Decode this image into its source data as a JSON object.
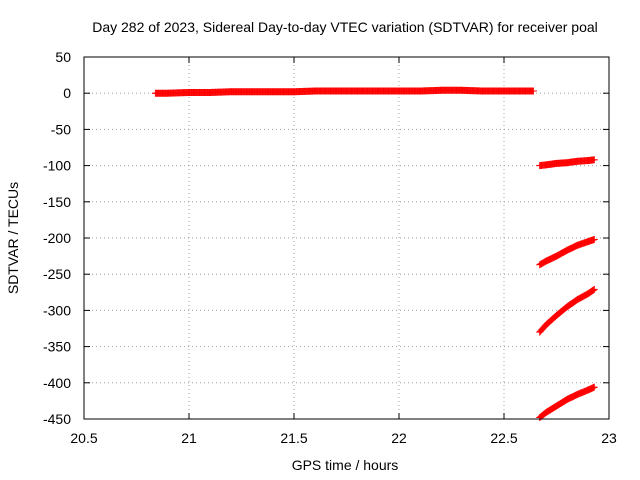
{
  "chart_data": {
    "type": "scatter",
    "title": "Day 282 of 2023, Sidereal Day-to-day VTEC variation (SDTVAR) for receiver poal",
    "xlabel": "GPS time / hours",
    "ylabel": "SDTVAR / TECUs",
    "xlim": [
      20.5,
      23
    ],
    "ylim": [
      -450,
      50
    ],
    "xticks": [
      "20.5",
      "21",
      "21.5",
      "22",
      "22.5",
      "23"
    ],
    "yticks": [
      "50",
      "0",
      "-50",
      "-100",
      "-150",
      "-200",
      "-250",
      "-300",
      "-350",
      "-400",
      "-450"
    ],
    "grid": true,
    "marker": "+",
    "colors": {
      "points": "#ff0000",
      "grid": "#a0a0a0",
      "axis": "#000000"
    },
    "series": [
      {
        "x": [
          20.84,
          20.9,
          21.0,
          21.1,
          21.2,
          21.3,
          21.4,
          21.5,
          21.6,
          21.7,
          21.8,
          21.9,
          22.0,
          22.1,
          22.2,
          22.3,
          22.4,
          22.5,
          22.6,
          22.64
        ],
        "y": [
          0,
          0,
          1,
          1,
          2,
          2,
          2,
          2,
          3,
          3,
          3,
          3,
          3,
          3,
          4,
          4,
          3,
          3,
          3,
          3
        ]
      },
      {
        "x": [
          22.67,
          22.7,
          22.75,
          22.8,
          22.85,
          22.9,
          22.93
        ],
        "y": [
          -100,
          -99,
          -97,
          -96,
          -94,
          -93,
          -92
        ]
      },
      {
        "x": [
          22.67,
          22.7,
          22.75,
          22.8,
          22.85,
          22.9,
          22.93
        ],
        "y": [
          -237,
          -232,
          -225,
          -217,
          -210,
          -205,
          -202
        ]
      },
      {
        "x": [
          22.67,
          22.7,
          22.75,
          22.8,
          22.85,
          22.9,
          22.93
        ],
        "y": [
          -330,
          -320,
          -307,
          -295,
          -285,
          -277,
          -271
        ]
      },
      {
        "x": [
          22.67,
          22.7,
          22.75,
          22.8,
          22.85,
          22.9,
          22.93
        ],
        "y": [
          -448,
          -441,
          -432,
          -423,
          -416,
          -410,
          -406
        ]
      }
    ]
  }
}
